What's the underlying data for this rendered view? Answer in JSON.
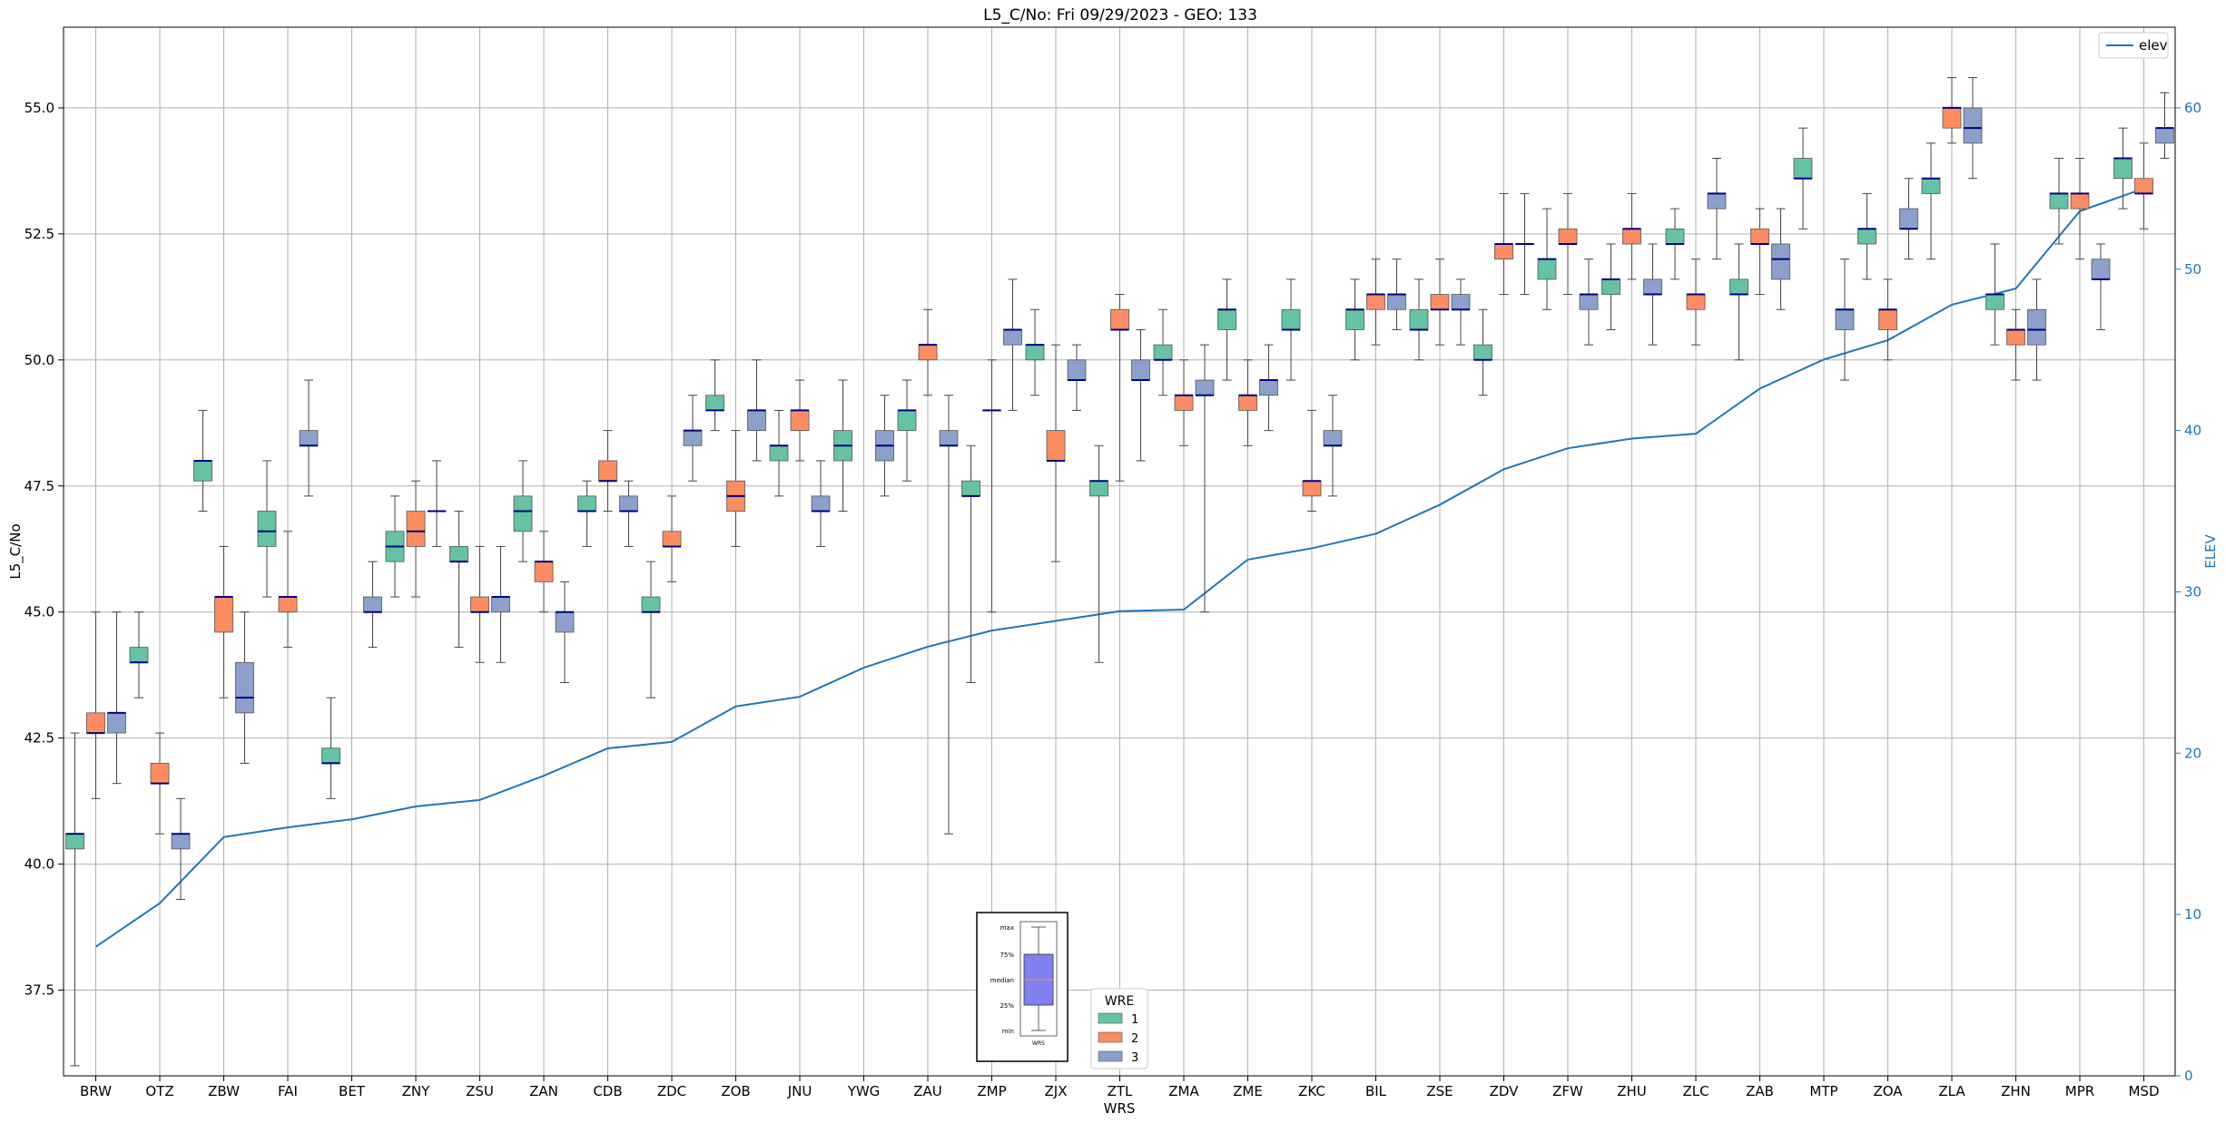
{
  "chart_data": {
    "type": "box",
    "title": "L5_C/No: Fri 09/29/2023 - GEO: 133",
    "xlabel": "WRS",
    "ylabel": "L5_C/No",
    "ylabel_right": "ELEV",
    "ylim": [
      35.8,
      56.6
    ],
    "ylim_right": [
      0,
      65
    ],
    "yticks": [
      "37.5",
      "40.0",
      "42.5",
      "45.0",
      "47.5",
      "50.0",
      "52.5",
      "55.0"
    ],
    "yticks_right": [
      "0",
      "10",
      "20",
      "30",
      "40",
      "50",
      "60"
    ],
    "grid": true,
    "categories": [
      "BRW",
      "OTZ",
      "ZBW",
      "FAI",
      "BET",
      "ZNY",
      "ZSU",
      "ZAN",
      "CDB",
      "ZDC",
      "ZOB",
      "JNU",
      "YWG",
      "ZAU",
      "ZMP",
      "ZJX",
      "ZTL",
      "ZMA",
      "ZME",
      "ZKC",
      "BIL",
      "ZSE",
      "ZDV",
      "ZFW",
      "ZHU",
      "ZLC",
      "ZAB",
      "MTP",
      "ZOA",
      "ZLA",
      "ZHN",
      "MPR",
      "MSD"
    ],
    "wre_colors": {
      "1": "#66c2a5",
      "2": "#fc8d62",
      "3": "#8da0cb"
    },
    "legend_wre": {
      "title": "WRE",
      "entries": [
        "1",
        "2",
        "3"
      ],
      "position": "bottom-center"
    },
    "legend_elev": {
      "entries": [
        "elev"
      ],
      "position": "top-right",
      "color": "#1f77b4"
    },
    "inset_key": {
      "labels": [
        "max",
        "75%",
        "median",
        "25%",
        "min"
      ],
      "xtick": "WRS"
    },
    "boxes": [
      {
        "cat": "BRW",
        "wre": 1,
        "min": 36.0,
        "q1": 40.3,
        "med": 40.6,
        "q3": 40.6,
        "max": 42.6
      },
      {
        "cat": "BRW",
        "wre": 2,
        "min": 41.3,
        "q1": 42.6,
        "med": 42.6,
        "q3": 43.0,
        "max": 45.0
      },
      {
        "cat": "BRW",
        "wre": 3,
        "min": 41.6,
        "q1": 42.6,
        "med": 43.0,
        "q3": 43.0,
        "max": 45.0
      },
      {
        "cat": "OTZ",
        "wre": 1,
        "min": 43.3,
        "q1": 44.0,
        "med": 44.0,
        "q3": 44.3,
        "max": 45.0
      },
      {
        "cat": "OTZ",
        "wre": 2,
        "min": 40.6,
        "q1": 41.6,
        "med": 41.6,
        "q3": 42.0,
        "max": 42.6
      },
      {
        "cat": "OTZ",
        "wre": 3,
        "min": 39.3,
        "q1": 40.3,
        "med": 40.6,
        "q3": 40.6,
        "max": 41.3
      },
      {
        "cat": "ZBW",
        "wre": 1,
        "min": 47.0,
        "q1": 47.6,
        "med": 48.0,
        "q3": 48.0,
        "max": 49.0
      },
      {
        "cat": "ZBW",
        "wre": 2,
        "min": 43.3,
        "q1": 44.6,
        "med": 45.3,
        "q3": 45.3,
        "max": 46.3
      },
      {
        "cat": "ZBW",
        "wre": 3,
        "min": 42.0,
        "q1": 43.0,
        "med": 43.3,
        "q3": 44.0,
        "max": 45.0
      },
      {
        "cat": "FAI",
        "wre": 1,
        "min": 45.3,
        "q1": 46.3,
        "med": 46.6,
        "q3": 47.0,
        "max": 48.0
      },
      {
        "cat": "FAI",
        "wre": 2,
        "min": 44.3,
        "q1": 45.0,
        "med": 45.3,
        "q3": 45.3,
        "max": 46.6
      },
      {
        "cat": "FAI",
        "wre": 3,
        "min": 47.3,
        "q1": 48.3,
        "med": 48.3,
        "q3": 48.6,
        "max": 49.6
      },
      {
        "cat": "BET",
        "wre": 1,
        "min": 41.3,
        "q1": 42.0,
        "med": 42.0,
        "q3": 42.3,
        "max": 43.3
      },
      {
        "cat": "BET",
        "wre": 3,
        "min": 44.3,
        "q1": 45.0,
        "med": 45.0,
        "q3": 45.3,
        "max": 46.0
      },
      {
        "cat": "ZNY",
        "wre": 1,
        "min": 45.3,
        "q1": 46.0,
        "med": 46.3,
        "q3": 46.6,
        "max": 47.3
      },
      {
        "cat": "ZNY",
        "wre": 2,
        "min": 45.3,
        "q1": 46.3,
        "med": 46.6,
        "q3": 47.0,
        "max": 47.6
      },
      {
        "cat": "ZNY",
        "wre": 3,
        "min": 46.3,
        "q1": 47.0,
        "med": 47.0,
        "q3": 47.0,
        "max": 48.0
      },
      {
        "cat": "ZSU",
        "wre": 1,
        "min": 44.3,
        "q1": 46.0,
        "med": 46.0,
        "q3": 46.3,
        "max": 47.0
      },
      {
        "cat": "ZSU",
        "wre": 2,
        "min": 44.0,
        "q1": 45.0,
        "med": 45.0,
        "q3": 45.3,
        "max": 46.3
      },
      {
        "cat": "ZSU",
        "wre": 3,
        "min": 44.0,
        "q1": 45.0,
        "med": 45.3,
        "q3": 45.3,
        "max": 46.3
      },
      {
        "cat": "ZAN",
        "wre": 1,
        "min": 46.0,
        "q1": 46.6,
        "med": 47.0,
        "q3": 47.3,
        "max": 48.0
      },
      {
        "cat": "ZAN",
        "wre": 2,
        "min": 45.0,
        "q1": 45.6,
        "med": 46.0,
        "q3": 46.0,
        "max": 46.6
      },
      {
        "cat": "ZAN",
        "wre": 3,
        "min": 43.6,
        "q1": 44.6,
        "med": 45.0,
        "q3": 45.0,
        "max": 45.6
      },
      {
        "cat": "CDB",
        "wre": 1,
        "min": 46.3,
        "q1": 47.0,
        "med": 47.0,
        "q3": 47.3,
        "max": 47.6
      },
      {
        "cat": "CDB",
        "wre": 2,
        "min": 47.0,
        "q1": 47.6,
        "med": 47.6,
        "q3": 48.0,
        "max": 48.6
      },
      {
        "cat": "CDB",
        "wre": 3,
        "min": 46.3,
        "q1": 47.0,
        "med": 47.0,
        "q3": 47.3,
        "max": 47.6
      },
      {
        "cat": "ZDC",
        "wre": 1,
        "min": 43.3,
        "q1": 45.0,
        "med": 45.0,
        "q3": 45.3,
        "max": 46.0
      },
      {
        "cat": "ZDC",
        "wre": 2,
        "min": 45.6,
        "q1": 46.3,
        "med": 46.3,
        "q3": 46.6,
        "max": 47.3
      },
      {
        "cat": "ZDC",
        "wre": 3,
        "min": 47.6,
        "q1": 48.3,
        "med": 48.6,
        "q3": 48.6,
        "max": 49.3
      },
      {
        "cat": "ZOB",
        "wre": 1,
        "min": 48.6,
        "q1": 49.0,
        "med": 49.0,
        "q3": 49.3,
        "max": 50.0
      },
      {
        "cat": "ZOB",
        "wre": 2,
        "min": 46.3,
        "q1": 47.0,
        "med": 47.3,
        "q3": 47.6,
        "max": 48.6
      },
      {
        "cat": "ZOB",
        "wre": 3,
        "min": 48.0,
        "q1": 48.6,
        "med": 49.0,
        "q3": 49.0,
        "max": 50.0
      },
      {
        "cat": "JNU",
        "wre": 1,
        "min": 47.3,
        "q1": 48.0,
        "med": 48.3,
        "q3": 48.3,
        "max": 49.0
      },
      {
        "cat": "JNU",
        "wre": 2,
        "min": 48.0,
        "q1": 48.6,
        "med": 49.0,
        "q3": 49.0,
        "max": 49.6
      },
      {
        "cat": "JNU",
        "wre": 3,
        "min": 46.3,
        "q1": 47.0,
        "med": 47.0,
        "q3": 47.3,
        "max": 48.0
      },
      {
        "cat": "YWG",
        "wre": 1,
        "min": 47.0,
        "q1": 48.0,
        "med": 48.3,
        "q3": 48.6,
        "max": 49.6
      },
      {
        "cat": "YWG",
        "wre": 3,
        "min": 47.3,
        "q1": 48.0,
        "med": 48.3,
        "q3": 48.6,
        "max": 49.3
      },
      {
        "cat": "ZAU",
        "wre": 1,
        "min": 47.6,
        "q1": 48.6,
        "med": 49.0,
        "q3": 49.0,
        "max": 49.6
      },
      {
        "cat": "ZAU",
        "wre": 2,
        "min": 49.3,
        "q1": 50.0,
        "med": 50.3,
        "q3": 50.3,
        "max": 51.0
      },
      {
        "cat": "ZAU",
        "wre": 3,
        "min": 40.6,
        "q1": 48.3,
        "med": 48.3,
        "q3": 48.6,
        "max": 49.3
      },
      {
        "cat": "ZMP",
        "wre": 1,
        "min": 43.6,
        "q1": 47.3,
        "med": 47.3,
        "q3": 47.6,
        "max": 48.3
      },
      {
        "cat": "ZMP",
        "wre": 2,
        "min": 45.0,
        "q1": 49.0,
        "med": 49.0,
        "q3": 49.0,
        "max": 50.0
      },
      {
        "cat": "ZMP",
        "wre": 3,
        "min": 49.0,
        "q1": 50.3,
        "med": 50.6,
        "q3": 50.6,
        "max": 51.6
      },
      {
        "cat": "ZJX",
        "wre": 1,
        "min": 49.3,
        "q1": 50.0,
        "med": 50.3,
        "q3": 50.3,
        "max": 51.0
      },
      {
        "cat": "ZJX",
        "wre": 2,
        "min": 46.0,
        "q1": 48.0,
        "med": 48.0,
        "q3": 48.6,
        "max": 50.3
      },
      {
        "cat": "ZJX",
        "wre": 3,
        "min": 49.0,
        "q1": 49.6,
        "med": 49.6,
        "q3": 50.0,
        "max": 50.3
      },
      {
        "cat": "ZTL",
        "wre": 1,
        "min": 44.0,
        "q1": 47.3,
        "med": 47.6,
        "q3": 47.6,
        "max": 48.3
      },
      {
        "cat": "ZTL",
        "wre": 2,
        "min": 47.6,
        "q1": 50.6,
        "med": 50.6,
        "q3": 51.0,
        "max": 51.3
      },
      {
        "cat": "ZTL",
        "wre": 3,
        "min": 48.0,
        "q1": 49.6,
        "med": 49.6,
        "q3": 50.0,
        "max": 50.6
      },
      {
        "cat": "ZMA",
        "wre": 1,
        "min": 49.3,
        "q1": 50.0,
        "med": 50.0,
        "q3": 50.3,
        "max": 51.0
      },
      {
        "cat": "ZMA",
        "wre": 2,
        "min": 48.3,
        "q1": 49.0,
        "med": 49.3,
        "q3": 49.3,
        "max": 50.0
      },
      {
        "cat": "ZMA",
        "wre": 3,
        "min": 45.0,
        "q1": 49.3,
        "med": 49.3,
        "q3": 49.6,
        "max": 50.3
      },
      {
        "cat": "ZME",
        "wre": 1,
        "min": 49.6,
        "q1": 50.6,
        "med": 51.0,
        "q3": 51.0,
        "max": 51.6
      },
      {
        "cat": "ZME",
        "wre": 2,
        "min": 48.3,
        "q1": 49.0,
        "med": 49.3,
        "q3": 49.3,
        "max": 50.0
      },
      {
        "cat": "ZME",
        "wre": 3,
        "min": 48.6,
        "q1": 49.3,
        "med": 49.6,
        "q3": 49.6,
        "max": 50.3
      },
      {
        "cat": "ZKC",
        "wre": 1,
        "min": 49.6,
        "q1": 50.6,
        "med": 50.6,
        "q3": 51.0,
        "max": 51.6
      },
      {
        "cat": "ZKC",
        "wre": 2,
        "min": 47.0,
        "q1": 47.3,
        "med": 47.6,
        "q3": 47.6,
        "max": 49.0
      },
      {
        "cat": "ZKC",
        "wre": 3,
        "min": 47.3,
        "q1": 48.3,
        "med": 48.3,
        "q3": 48.6,
        "max": 49.3
      },
      {
        "cat": "BIL",
        "wre": 1,
        "min": 50.0,
        "q1": 50.6,
        "med": 51.0,
        "q3": 51.0,
        "max": 51.6
      },
      {
        "cat": "BIL",
        "wre": 2,
        "min": 50.3,
        "q1": 51.0,
        "med": 51.3,
        "q3": 51.3,
        "max": 52.0
      },
      {
        "cat": "BIL",
        "wre": 3,
        "min": 50.6,
        "q1": 51.0,
        "med": 51.3,
        "q3": 51.3,
        "max": 52.0
      },
      {
        "cat": "ZSE",
        "wre": 1,
        "min": 50.0,
        "q1": 50.6,
        "med": 50.6,
        "q3": 51.0,
        "max": 51.6
      },
      {
        "cat": "ZSE",
        "wre": 2,
        "min": 50.3,
        "q1": 51.0,
        "med": 51.0,
        "q3": 51.3,
        "max": 52.0
      },
      {
        "cat": "ZSE",
        "wre": 3,
        "min": 50.3,
        "q1": 51.0,
        "med": 51.0,
        "q3": 51.3,
        "max": 51.6
      },
      {
        "cat": "ZDV",
        "wre": 1,
        "min": 49.3,
        "q1": 50.0,
        "med": 50.0,
        "q3": 50.3,
        "max": 51.0
      },
      {
        "cat": "ZDV",
        "wre": 2,
        "min": 51.3,
        "q1": 52.0,
        "med": 52.3,
        "q3": 52.3,
        "max": 53.3
      },
      {
        "cat": "ZDV",
        "wre": 3,
        "min": 51.3,
        "q1": 52.3,
        "med": 52.3,
        "q3": 52.3,
        "max": 53.3
      },
      {
        "cat": "ZFW",
        "wre": 1,
        "min": 51.0,
        "q1": 51.6,
        "med": 52.0,
        "q3": 52.0,
        "max": 53.0
      },
      {
        "cat": "ZFW",
        "wre": 2,
        "min": 51.3,
        "q1": 52.3,
        "med": 52.3,
        "q3": 52.6,
        "max": 53.3
      },
      {
        "cat": "ZFW",
        "wre": 3,
        "min": 50.3,
        "q1": 51.0,
        "med": 51.3,
        "q3": 51.3,
        "max": 52.0
      },
      {
        "cat": "ZHU",
        "wre": 1,
        "min": 50.6,
        "q1": 51.3,
        "med": 51.6,
        "q3": 51.6,
        "max": 52.3
      },
      {
        "cat": "ZHU",
        "wre": 2,
        "min": 51.6,
        "q1": 52.3,
        "med": 52.6,
        "q3": 52.6,
        "max": 53.3
      },
      {
        "cat": "ZHU",
        "wre": 3,
        "min": 50.3,
        "q1": 51.3,
        "med": 51.3,
        "q3": 51.6,
        "max": 52.3
      },
      {
        "cat": "ZLC",
        "wre": 1,
        "min": 51.6,
        "q1": 52.3,
        "med": 52.3,
        "q3": 52.6,
        "max": 53.0
      },
      {
        "cat": "ZLC",
        "wre": 2,
        "min": 50.3,
        "q1": 51.0,
        "med": 51.3,
        "q3": 51.3,
        "max": 52.0
      },
      {
        "cat": "ZLC",
        "wre": 3,
        "min": 52.0,
        "q1": 53.0,
        "med": 53.3,
        "q3": 53.3,
        "max": 54.0
      },
      {
        "cat": "ZAB",
        "wre": 1,
        "min": 50.0,
        "q1": 51.3,
        "med": 51.3,
        "q3": 51.6,
        "max": 52.3
      },
      {
        "cat": "ZAB",
        "wre": 2,
        "min": 51.3,
        "q1": 52.3,
        "med": 52.3,
        "q3": 52.6,
        "max": 53.0
      },
      {
        "cat": "ZAB",
        "wre": 3,
        "min": 51.0,
        "q1": 51.6,
        "med": 52.0,
        "q3": 52.3,
        "max": 53.0
      },
      {
        "cat": "MTP",
        "wre": 1,
        "min": 52.6,
        "q1": 53.6,
        "med": 53.6,
        "q3": 54.0,
        "max": 54.6
      },
      {
        "cat": "MTP",
        "wre": 3,
        "min": 49.6,
        "q1": 50.6,
        "med": 51.0,
        "q3": 51.0,
        "max": 52.0
      },
      {
        "cat": "ZOA",
        "wre": 1,
        "min": 51.6,
        "q1": 52.3,
        "med": 52.6,
        "q3": 52.6,
        "max": 53.3
      },
      {
        "cat": "ZOA",
        "wre": 2,
        "min": 50.0,
        "q1": 50.6,
        "med": 51.0,
        "q3": 51.0,
        "max": 51.6
      },
      {
        "cat": "ZOA",
        "wre": 3,
        "min": 52.0,
        "q1": 52.6,
        "med": 52.6,
        "q3": 53.0,
        "max": 53.6
      },
      {
        "cat": "ZLA",
        "wre": 1,
        "min": 52.0,
        "q1": 53.3,
        "med": 53.6,
        "q3": 53.6,
        "max": 54.3
      },
      {
        "cat": "ZLA",
        "wre": 2,
        "min": 54.3,
        "q1": 54.6,
        "med": 55.0,
        "q3": 55.0,
        "max": 55.6
      },
      {
        "cat": "ZLA",
        "wre": 3,
        "min": 53.6,
        "q1": 54.3,
        "med": 54.6,
        "q3": 55.0,
        "max": 55.6
      },
      {
        "cat": "ZHN",
        "wre": 1,
        "min": 50.3,
        "q1": 51.0,
        "med": 51.3,
        "q3": 51.3,
        "max": 52.3
      },
      {
        "cat": "ZHN",
        "wre": 2,
        "min": 49.6,
        "q1": 50.3,
        "med": 50.6,
        "q3": 50.6,
        "max": 51.0
      },
      {
        "cat": "ZHN",
        "wre": 3,
        "min": 49.6,
        "q1": 50.3,
        "med": 50.6,
        "q3": 51.0,
        "max": 51.6
      },
      {
        "cat": "MPR",
        "wre": 1,
        "min": 52.3,
        "q1": 53.0,
        "med": 53.3,
        "q3": 53.3,
        "max": 54.0
      },
      {
        "cat": "MPR",
        "wre": 2,
        "min": 52.0,
        "q1": 53.0,
        "med": 53.3,
        "q3": 53.3,
        "max": 54.0
      },
      {
        "cat": "MPR",
        "wre": 3,
        "min": 50.6,
        "q1": 51.6,
        "med": 51.6,
        "q3": 52.0,
        "max": 52.3
      },
      {
        "cat": "MSD",
        "wre": 1,
        "min": 53.0,
        "q1": 53.6,
        "med": 54.0,
        "q3": 54.0,
        "max": 54.6
      },
      {
        "cat": "MSD",
        "wre": 2,
        "min": 52.6,
        "q1": 53.3,
        "med": 53.3,
        "q3": 53.6,
        "max": 54.3
      },
      {
        "cat": "MSD",
        "wre": 3,
        "min": 54.0,
        "q1": 54.3,
        "med": 54.6,
        "q3": 54.6,
        "max": 55.3
      }
    ],
    "elev_series": {
      "name": "elev",
      "values": [
        8,
        10.7,
        14.8,
        15.4,
        15.9,
        16.7,
        17.1,
        18.6,
        20.3,
        20.7,
        22.9,
        23.5,
        25.3,
        26.6,
        27.6,
        28.2,
        28.8,
        28.9,
        32.0,
        32.7,
        33.6,
        35.4,
        37.6,
        38.9,
        39.5,
        39.8,
        42.6,
        44.4,
        45.6,
        47.8,
        48.8,
        53.6,
        55.0
      ]
    }
  }
}
